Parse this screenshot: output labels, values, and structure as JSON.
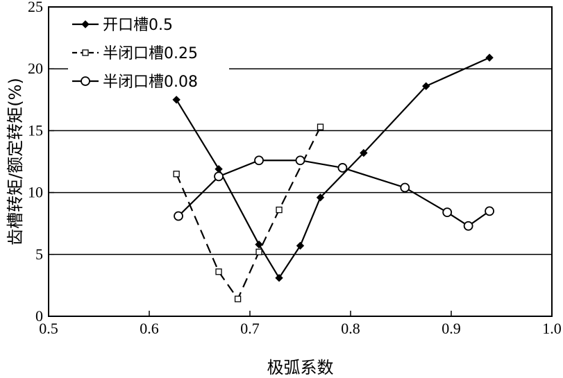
{
  "chart_data": {
    "type": "line",
    "title": "",
    "xlabel": "极弧系数",
    "ylabel": "齿槽转矩/额定转矩(%)",
    "xlim": [
      0.5,
      1.0
    ],
    "ylim": [
      0,
      25
    ],
    "xticks": [
      "0.5",
      "0.6",
      "0.7",
      "0.8",
      "0.9",
      "1.0"
    ],
    "yticks": [
      "0",
      "5",
      "10",
      "15",
      "20",
      "25"
    ],
    "grid": "horizontal lines at y = 5, 10, 15, 20",
    "legend_position": "top-left",
    "series": [
      {
        "name": "开口槽0.5",
        "line": "solid",
        "marker": "filled-diamond",
        "x": [
          0.627,
          0.669,
          0.709,
          0.729,
          0.75,
          0.77,
          0.813,
          0.875,
          0.938
        ],
        "y": [
          17.5,
          11.9,
          5.8,
          3.1,
          5.7,
          9.6,
          13.2,
          18.6,
          20.9
        ]
      },
      {
        "name": "半闭口槽0.25",
        "line": "dashed",
        "marker": "hollow-square",
        "x": [
          0.627,
          0.669,
          0.688,
          0.709,
          0.729,
          0.77
        ],
        "y": [
          11.5,
          3.6,
          1.4,
          5.2,
          8.6,
          15.3
        ]
      },
      {
        "name": "半闭口槽0.08",
        "line": "solid",
        "marker": "hollow-circle",
        "x": [
          0.629,
          0.669,
          0.709,
          0.75,
          0.792,
          0.854,
          0.896,
          0.917,
          0.938
        ],
        "y": [
          8.1,
          11.3,
          12.6,
          12.6,
          12.0,
          10.4,
          8.4,
          7.3,
          8.5
        ]
      }
    ]
  }
}
